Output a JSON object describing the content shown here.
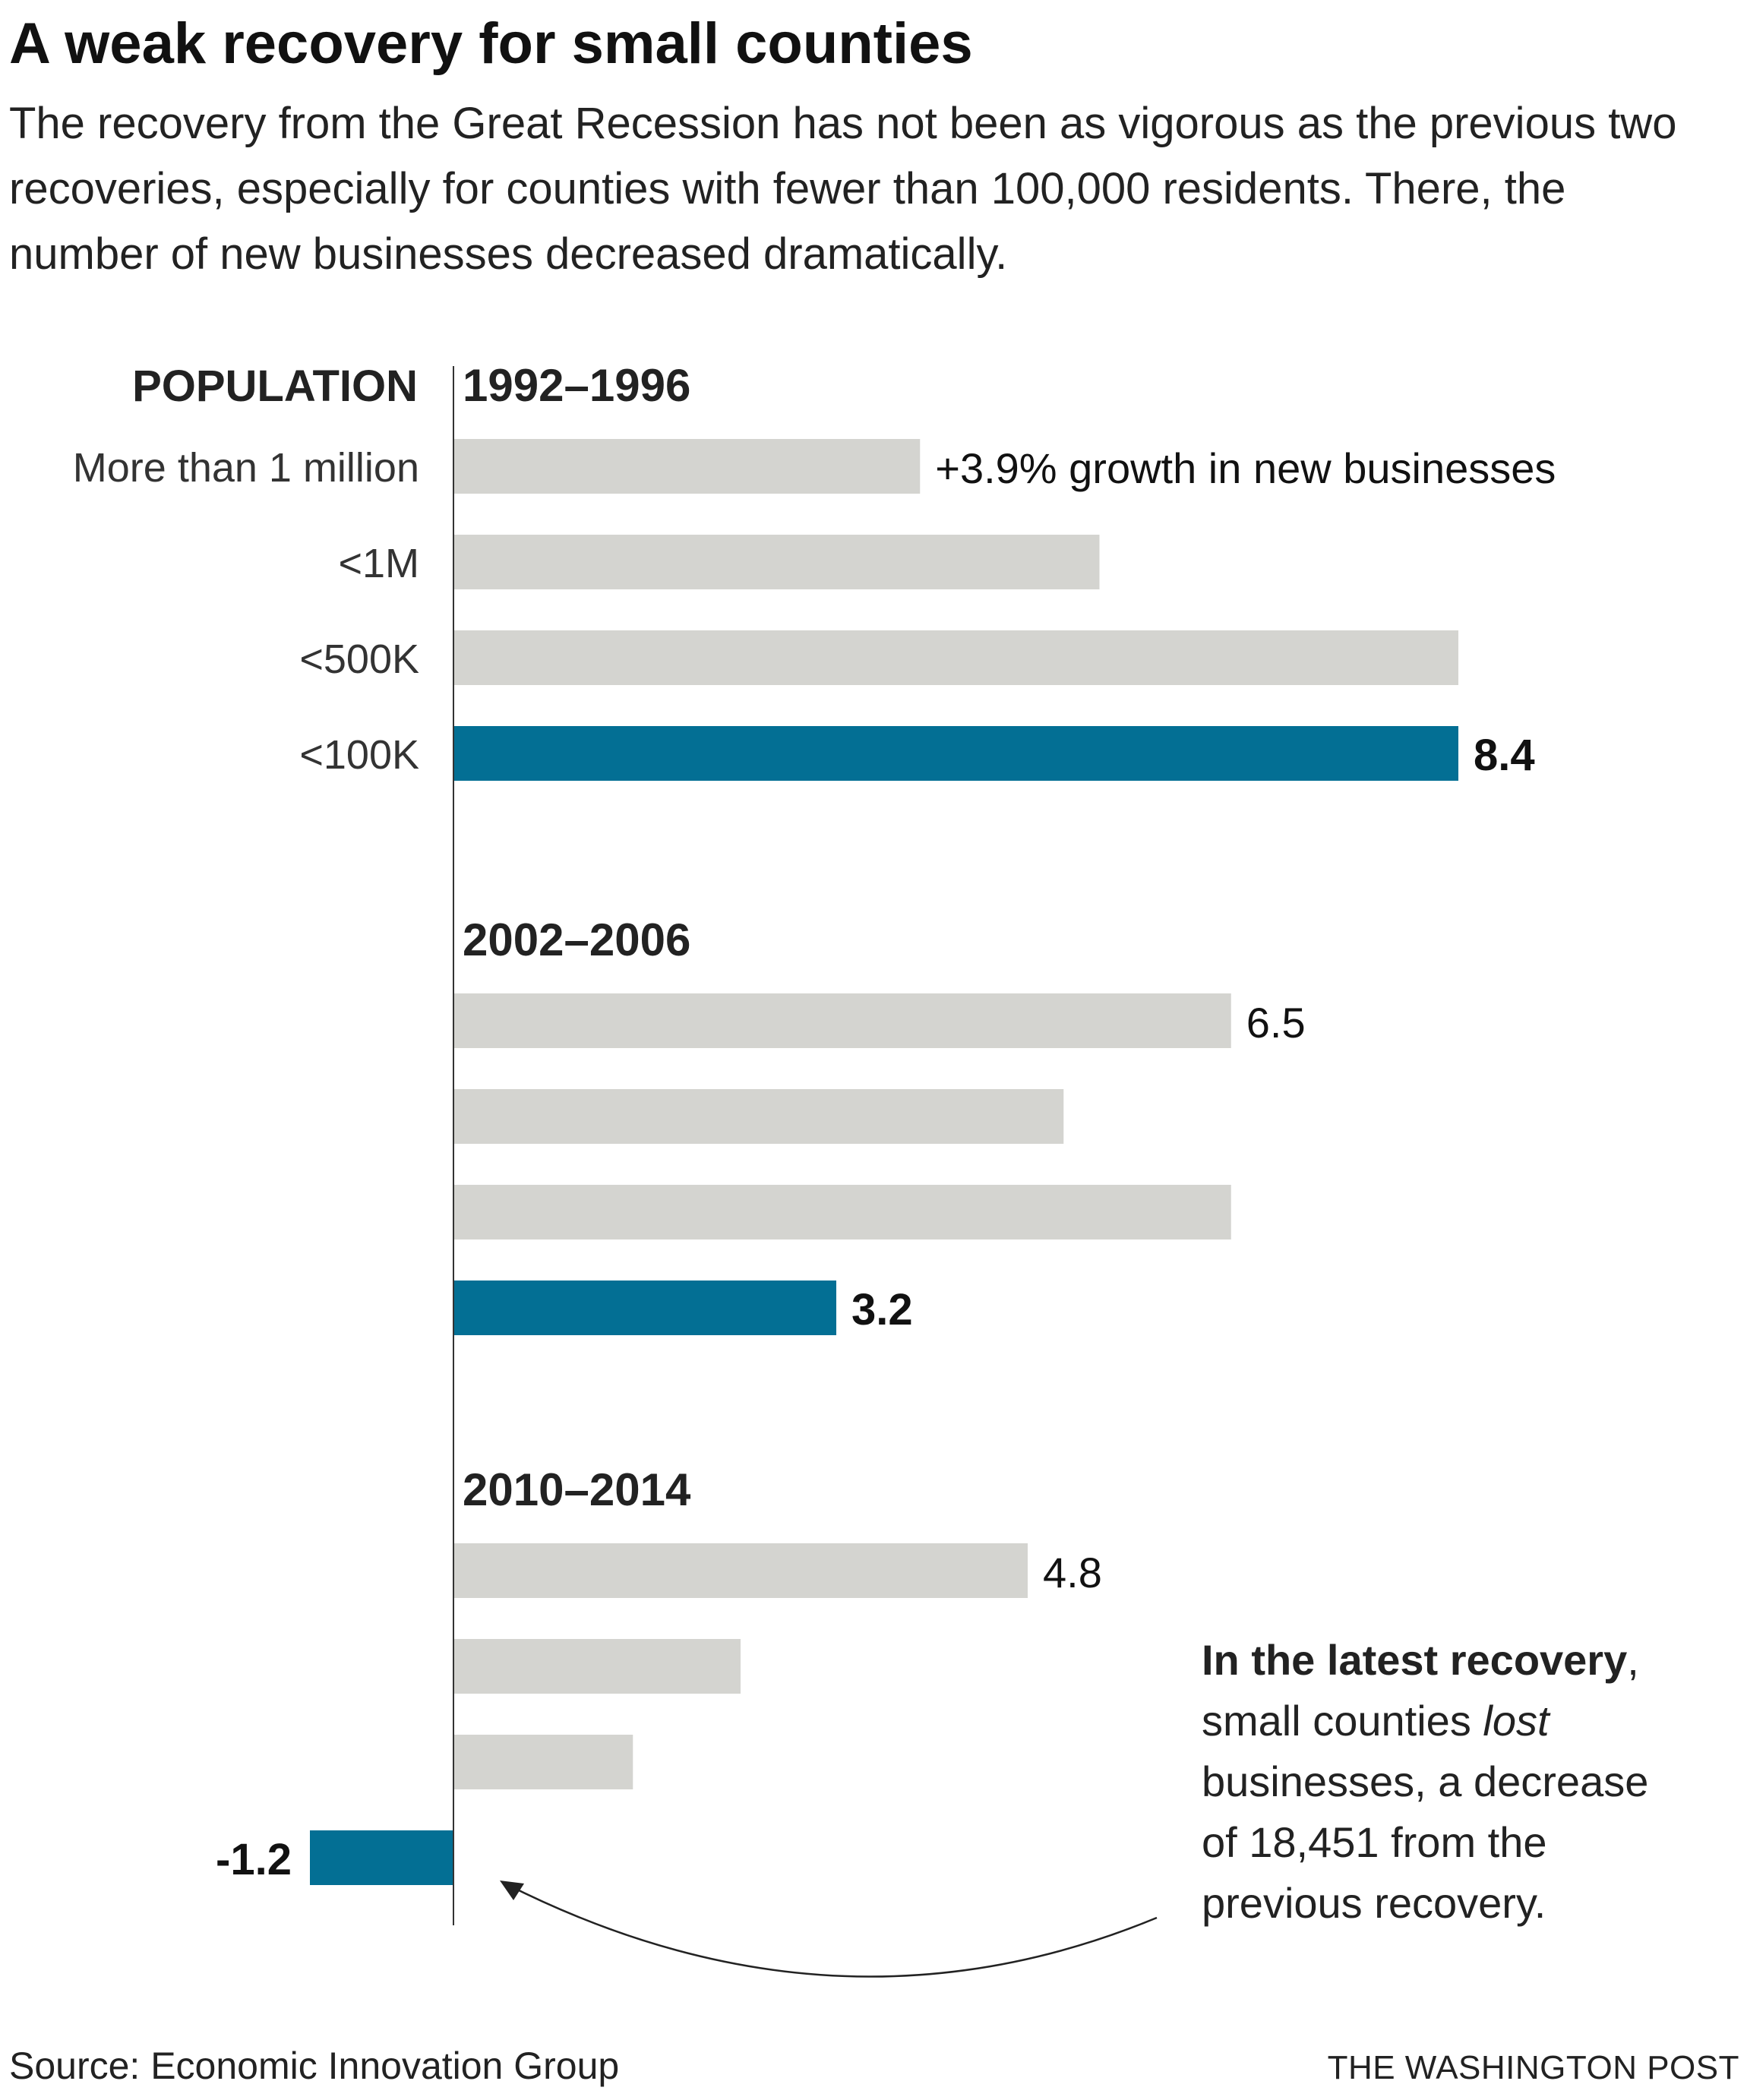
{
  "title": "A weak recovery for small counties",
  "subtitle": "The recovery from the Great Recession has not been as vigorous as the previous two recoveries, especially for counties with fewer than 100,000 residents. There, the number of new businesses decreased dramatically.",
  "source": "Source: Economic Innovation Group",
  "credit": "THE WASHINGTON POST",
  "colors": {
    "bar": "#d4d4d0",
    "highlight": "#036f94",
    "axis": "#333333"
  },
  "chart_data": {
    "type": "bar",
    "orientation": "horizontal",
    "category_header": "POPULATION",
    "categories": [
      "More than 1 million",
      "<1M",
      "<500K",
      "<100K"
    ],
    "series": [
      {
        "name": "1992–1996",
        "values": [
          3.9,
          5.4,
          8.4,
          8.4
        ]
      },
      {
        "name": "2002–2006",
        "values": [
          6.5,
          5.1,
          6.5,
          3.2
        ]
      },
      {
        "name": "2010–2014",
        "values": [
          4.8,
          2.4,
          1.5,
          -1.2
        ]
      }
    ],
    "data_labels": [
      [
        {
          "index": 0,
          "text": "+3.9% growth in new businesses"
        },
        {
          "index": 3,
          "text": "8.4",
          "bold": true
        }
      ],
      [
        {
          "index": 0,
          "text": "6.5"
        },
        {
          "index": 3,
          "text": "3.2",
          "bold": true
        }
      ],
      [
        {
          "index": 0,
          "text": "4.8"
        },
        {
          "index": 3,
          "text": "-1.2",
          "bold": true
        }
      ]
    ],
    "highlight_category": "<100K",
    "xlim": [
      -1.2,
      8.4
    ],
    "grid": false,
    "legend": "none",
    "annotation": {
      "bold": "In the latest recovery",
      "lines": [
        ", ",
        "small counties ",
        "lost",
        "businesses, a decrease",
        "of 18,451 from the",
        "previous recovery."
      ]
    }
  }
}
